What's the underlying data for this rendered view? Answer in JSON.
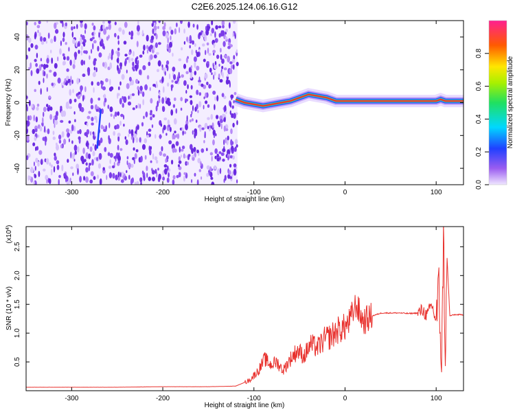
{
  "title": "C2E6.2025.124.06.16.G12",
  "chart_data": [
    {
      "type": "heatmap",
      "xlabel": "Height of straight line (km)",
      "ylabel": "Frequency (Hz)",
      "xlim": [
        -350,
        130
      ],
      "ylim": [
        -50,
        50
      ],
      "x_ticks": [
        -300,
        -200,
        -100,
        0,
        100
      ],
      "y_ticks": [
        -40,
        -20,
        0,
        20,
        40
      ],
      "noise_region": [
        -350,
        -118
      ],
      "signal_trace": {
        "x": [
          -120,
          -110,
          -100,
          -90,
          -80,
          -70,
          -60,
          -50,
          -40,
          -30,
          -20,
          -10,
          0,
          10,
          20,
          30,
          40,
          50,
          60,
          70,
          80,
          90,
          100,
          105,
          110,
          120,
          130
        ],
        "y": [
          2,
          0,
          -1,
          -2,
          -1,
          0,
          1,
          3,
          5,
          4,
          3,
          1,
          1,
          1,
          1,
          1,
          1,
          1,
          1,
          1,
          1,
          1,
          1,
          2,
          1,
          1,
          1
        ]
      },
      "colorbar": {
        "label": "Normalized spectral amplitude",
        "range": [
          0.0,
          1.0
        ],
        "ticks": [
          "0.0",
          "0.2",
          "0.4",
          "0.6",
          "0.8"
        ],
        "tick_values": [
          0.0,
          0.2,
          0.4,
          0.6,
          0.8
        ]
      },
      "grid": false
    },
    {
      "type": "line",
      "xlabel": "Height of straight line (km)",
      "ylabel": "SNR (10 * v/v)",
      "scale_label": "(x10",
      "scale_exp": "4",
      "xlim": [
        -350,
        130
      ],
      "ylim": [
        0.0,
        2.85
      ],
      "x_ticks": [
        -300,
        -200,
        -100,
        0,
        100
      ],
      "y_tick_values": [
        0.5,
        1.0,
        1.5,
        2.0,
        2.5
      ],
      "y_tick_labels": [
        "0.5",
        "1.0",
        "1.5",
        "2.0",
        "2.5"
      ],
      "series": [
        {
          "color": "#e8302c",
          "x": [
            -350,
            -300,
            -250,
            -200,
            -150,
            -120,
            -105,
            -95,
            -88,
            -82,
            -75,
            -68,
            -60,
            -52,
            -45,
            -38,
            -30,
            -22,
            -15,
            -8,
            0,
            5,
            12,
            20,
            30,
            40,
            50,
            60,
            70,
            80,
            85,
            90,
            95,
            100,
            103,
            106,
            108,
            110,
            112,
            115,
            120,
            130
          ],
          "y": [
            0.06,
            0.06,
            0.06,
            0.07,
            0.07,
            0.08,
            0.18,
            0.35,
            0.55,
            0.45,
            0.5,
            0.35,
            0.55,
            0.7,
            0.6,
            0.8,
            0.75,
            0.9,
            0.95,
            1.05,
            1.1,
            1.2,
            1.5,
            1.2,
            1.3,
            1.35,
            1.35,
            1.35,
            1.34,
            1.35,
            1.4,
            1.3,
            1.5,
            1.2,
            1.8,
            0.3,
            2.8,
            0.5,
            2.3,
            1.3,
            1.32,
            1.32
          ]
        }
      ],
      "grid": false
    }
  ]
}
